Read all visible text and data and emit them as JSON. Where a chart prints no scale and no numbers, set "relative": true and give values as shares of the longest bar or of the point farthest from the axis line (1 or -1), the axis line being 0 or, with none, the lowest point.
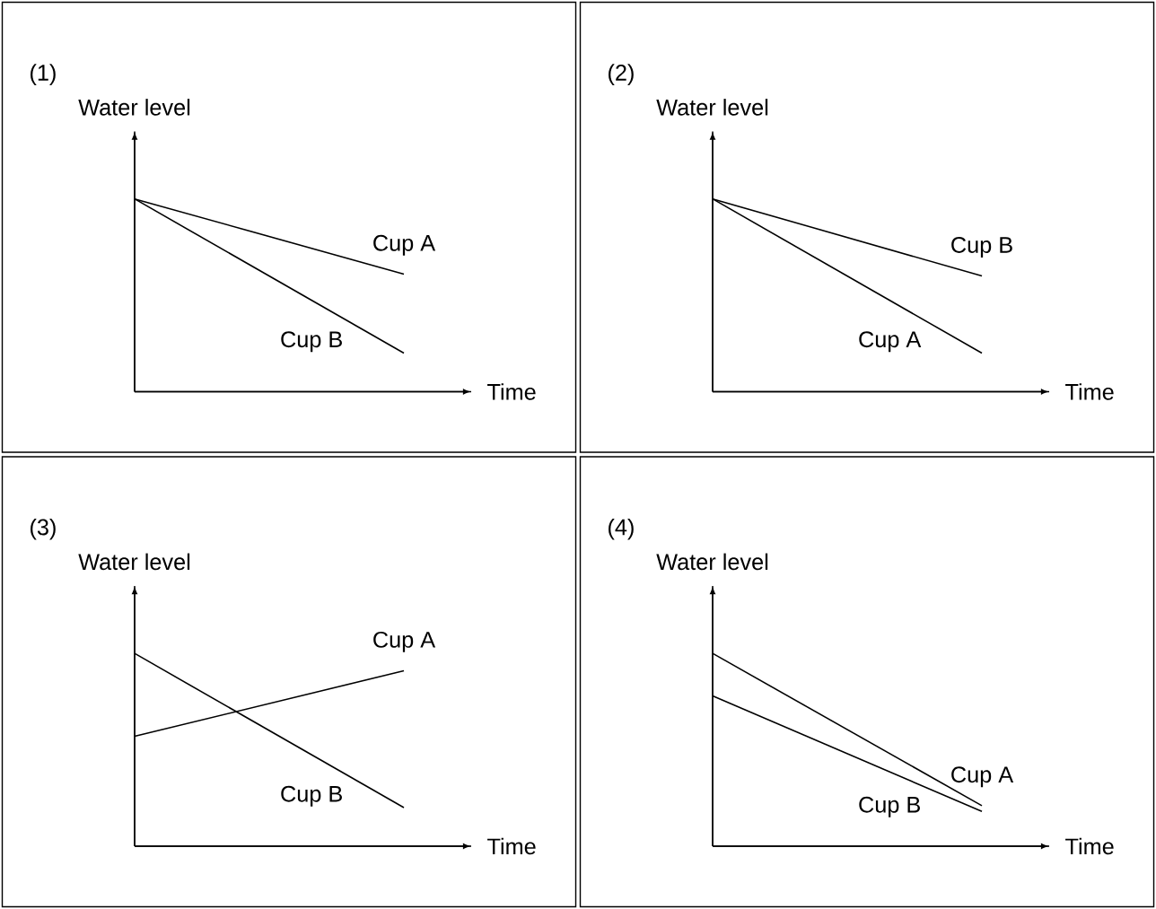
{
  "chart_data": [
    {
      "type": "line",
      "title": "(1)",
      "xlabel": "Time",
      "ylabel": "Water level",
      "relative": true,
      "legend": false,
      "categories": [
        null,
        null
      ],
      "series": [
        {
          "name": "Cup A",
          "color": "#000000",
          "values": [
            1,
            0.61
          ]
        },
        {
          "name": "Cup B",
          "color": "#000000",
          "values": [
            1,
            0.2
          ]
        }
      ]
    },
    {
      "type": "line",
      "title": "(2)",
      "xlabel": "Time",
      "ylabel": "Water level",
      "relative": true,
      "legend": false,
      "categories": [
        null,
        null
      ],
      "series": [
        {
          "name": "Cup B",
          "color": "#000000",
          "values": [
            1,
            0.6
          ]
        },
        {
          "name": "Cup A",
          "color": "#000000",
          "values": [
            1,
            0.2
          ]
        }
      ]
    },
    {
      "type": "line",
      "title": "(3)",
      "xlabel": "Time",
      "ylabel": "Water level",
      "relative": true,
      "legend": false,
      "categories": [
        null,
        null
      ],
      "series": [
        {
          "name": "Cup A",
          "color": "#000000",
          "values": [
            0.57,
            0.91
          ]
        },
        {
          "name": "Cup B",
          "color": "#000000",
          "values": [
            1,
            0.2
          ]
        }
      ]
    },
    {
      "type": "line",
      "title": "(4)",
      "xlabel": "Time",
      "ylabel": "Water level",
      "relative": true,
      "legend": false,
      "categories": [
        null,
        null
      ],
      "series": [
        {
          "name": "Cup A",
          "color": "#000000",
          "values": [
            1,
            0.21
          ]
        },
        {
          "name": "Cup B",
          "color": "#000000",
          "values": [
            0.78,
            0.18
          ]
        }
      ]
    }
  ]
}
